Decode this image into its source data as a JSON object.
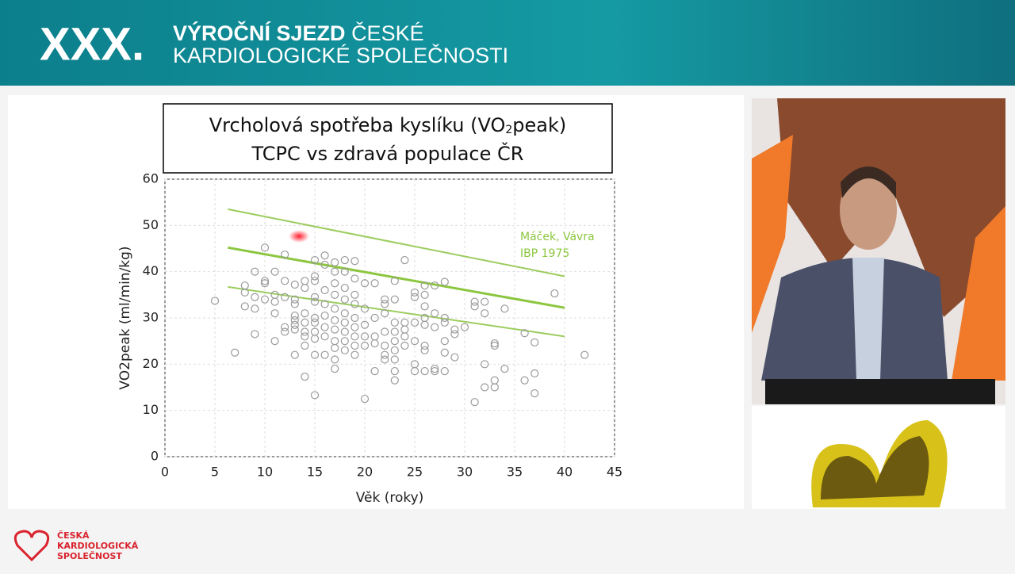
{
  "header": {
    "number": "XXX.",
    "line1_bold": "VÝROČNÍ SJEZD",
    "line1_rest": "ČESKÉ",
    "line2": "KARDIOLOGICKÉ SPOLEČNOSTI"
  },
  "chart_data": {
    "type": "scatter",
    "title_parts": [
      "Vrcholová spotřeba kyslíku (VO",
      "2",
      "peak)"
    ],
    "subtitle": "TCPC vs zdravá populace ČR",
    "xlabel": "Věk (roky)",
    "ylabel": "VO2peak (ml/min/kg)",
    "xlim": [
      0,
      45
    ],
    "xticks": [
      0,
      5,
      10,
      15,
      20,
      25,
      30,
      35,
      40,
      45
    ],
    "ylim": [
      0,
      60
    ],
    "yticks": [
      0,
      10,
      20,
      30,
      40,
      50,
      60
    ],
    "grid": true,
    "annotation": [
      "Máček, Vávra",
      "IBP 1975"
    ],
    "series": [
      {
        "color": "#9a9a9a",
        "x": [
          5,
          7,
          8,
          8,
          8,
          9,
          9,
          9,
          9,
          10,
          10,
          10,
          10,
          11,
          11,
          11,
          11,
          11,
          12,
          12,
          12,
          12,
          12,
          13,
          13,
          13,
          13,
          13,
          13,
          13,
          13,
          14,
          14,
          14,
          14,
          14,
          14,
          14,
          14,
          15,
          15,
          15,
          15,
          15,
          15,
          15,
          15,
          15,
          15,
          15,
          16,
          16,
          16,
          16,
          16,
          16,
          16,
          16,
          17,
          17,
          17,
          17,
          17,
          17,
          17,
          17,
          17,
          17,
          17,
          18,
          18,
          18,
          18,
          18,
          18,
          18,
          18,
          18,
          19,
          19,
          19,
          19,
          19,
          19,
          19,
          19,
          19,
          20,
          20,
          20,
          20,
          20,
          20,
          21,
          21,
          21,
          21,
          21,
          22,
          22,
          22,
          22,
          22,
          22,
          22,
          23,
          23,
          23,
          23,
          23,
          23,
          23,
          23,
          23,
          24,
          24,
          24,
          24,
          24,
          25,
          25,
          25,
          25,
          25,
          25,
          26,
          26,
          26,
          26,
          26,
          26,
          26,
          26,
          27,
          27,
          27,
          27,
          27,
          28,
          28,
          28,
          28,
          28,
          28,
          29,
          29,
          29,
          30,
          31,
          31,
          31,
          32,
          32,
          32,
          32,
          33,
          33,
          33,
          33,
          34,
          34,
          36,
          36,
          37,
          37,
          37,
          39,
          42
        ],
        "values": [
          33.7,
          22.5,
          37,
          35.5,
          32.5,
          40,
          34.5,
          32,
          26.5,
          45.2,
          38,
          37.5,
          34,
          40,
          35,
          33.5,
          31,
          25,
          43.7,
          38,
          34.5,
          28,
          27,
          37.2,
          34,
          33,
          30.5,
          29.5,
          28.5,
          27.5,
          22,
          38,
          36.5,
          31,
          29,
          27,
          26,
          24,
          17.3,
          42.5,
          39,
          38,
          34.5,
          33.5,
          30,
          29,
          27,
          25.5,
          22,
          13.3,
          43.5,
          41.5,
          36,
          33,
          30.5,
          28,
          26,
          22,
          42,
          40,
          37.5,
          35,
          32,
          29.5,
          27.5,
          25,
          23.5,
          21,
          19,
          42.5,
          40,
          36.5,
          34,
          31,
          29,
          27,
          25,
          23,
          42.3,
          38.5,
          35,
          33,
          30,
          28,
          26,
          24,
          22,
          37.5,
          32,
          28.5,
          26,
          24,
          12.5,
          37.5,
          30,
          26,
          24.5,
          18.5,
          34,
          33,
          31,
          27,
          24,
          22,
          21,
          38,
          34,
          29,
          27,
          25,
          23,
          21,
          18.5,
          16.5,
          42.5,
          29,
          27.5,
          26,
          24,
          35.5,
          34.5,
          29,
          25,
          20,
          18.5,
          37,
          35,
          32.5,
          30,
          28.5,
          24,
          23,
          18.5,
          37,
          31,
          28,
          19,
          18.5,
          37.8,
          30,
          29,
          25,
          22.5,
          18.5,
          27.5,
          26.5,
          21.5,
          28,
          33.5,
          32.5,
          11.8,
          33.5,
          31,
          20,
          15,
          24.5,
          24,
          16.5,
          15,
          32,
          19,
          26.7,
          16.5,
          24.7,
          18,
          13.7,
          35.3,
          22
        ]
      }
    ],
    "reference_lines": [
      {
        "color": "#9ccc5e",
        "x": [
          6.3,
          40
        ],
        "values": [
          53.5,
          39
        ]
      },
      {
        "color": "#8cc63f",
        "x": [
          6.3,
          40
        ],
        "values": [
          45.2,
          32.2
        ]
      },
      {
        "color": "#9ccc5e",
        "x": [
          6.3,
          40
        ],
        "values": [
          36.7,
          26
        ]
      }
    ]
  },
  "footer": {
    "logo_lines": [
      "ČESKÁ",
      "KARDIOLOGICKÁ",
      "SPOLEČNOST"
    ]
  }
}
